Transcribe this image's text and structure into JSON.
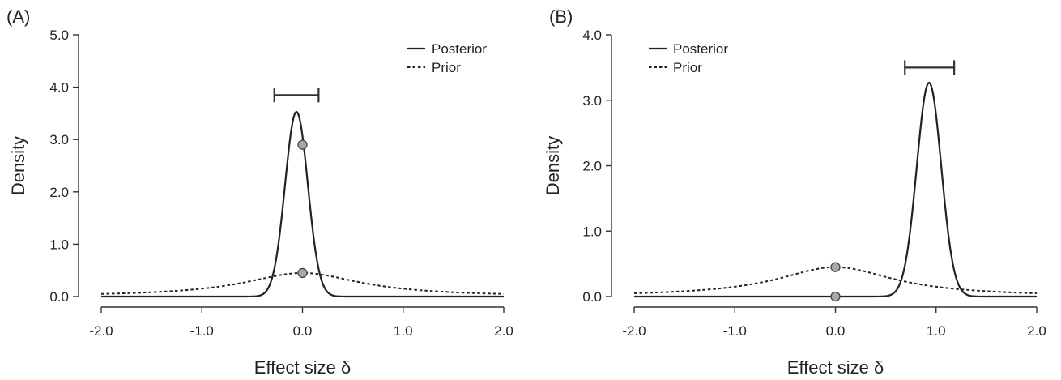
{
  "chart_data": [
    {
      "type": "line",
      "panel_label": "(A)",
      "xlabel": "Effect size δ",
      "ylabel": "Density",
      "xlim": [
        -2.0,
        2.0
      ],
      "ylim": [
        0,
        5.0
      ],
      "x_ticks": [
        "-2.0",
        "-1.0",
        "0.0",
        "1.0",
        "2.0"
      ],
      "y_ticks": [
        "0.0",
        "1.0",
        "2.0",
        "3.0",
        "4.0",
        "5.0"
      ],
      "legend_position": "top-right",
      "series": [
        {
          "name": "Posterior",
          "style": "solid",
          "mean": -0.06,
          "sd": 0.113
        },
        {
          "name": "Prior",
          "style": "dotted",
          "distribution": "cauchy",
          "scale": 0.707
        }
      ],
      "points": [
        {
          "x": 0.0,
          "y": 2.9
        },
        {
          "x": 0.0,
          "y": 0.45
        }
      ],
      "interval": {
        "low": -0.28,
        "high": 0.16,
        "y": 3.85
      }
    },
    {
      "type": "line",
      "panel_label": "(B)",
      "xlabel": "Effect size δ",
      "ylabel": "Density",
      "xlim": [
        -2.0,
        2.0
      ],
      "ylim": [
        0,
        4.0
      ],
      "x_ticks": [
        "-2.0",
        "-1.0",
        "0.0",
        "1.0",
        "2.0"
      ],
      "y_ticks": [
        "0.0",
        "1.0",
        "2.0",
        "3.0",
        "4.0"
      ],
      "legend_position": "top-left",
      "series": [
        {
          "name": "Posterior",
          "style": "solid",
          "mean": 0.93,
          "sd": 0.122
        },
        {
          "name": "Prior",
          "style": "dotted",
          "distribution": "cauchy",
          "scale": 0.707
        }
      ],
      "points": [
        {
          "x": 0.0,
          "y": 0.45
        },
        {
          "x": 0.0,
          "y": 0.0
        }
      ],
      "interval": {
        "low": 0.69,
        "high": 1.18,
        "y": 3.5
      }
    }
  ]
}
